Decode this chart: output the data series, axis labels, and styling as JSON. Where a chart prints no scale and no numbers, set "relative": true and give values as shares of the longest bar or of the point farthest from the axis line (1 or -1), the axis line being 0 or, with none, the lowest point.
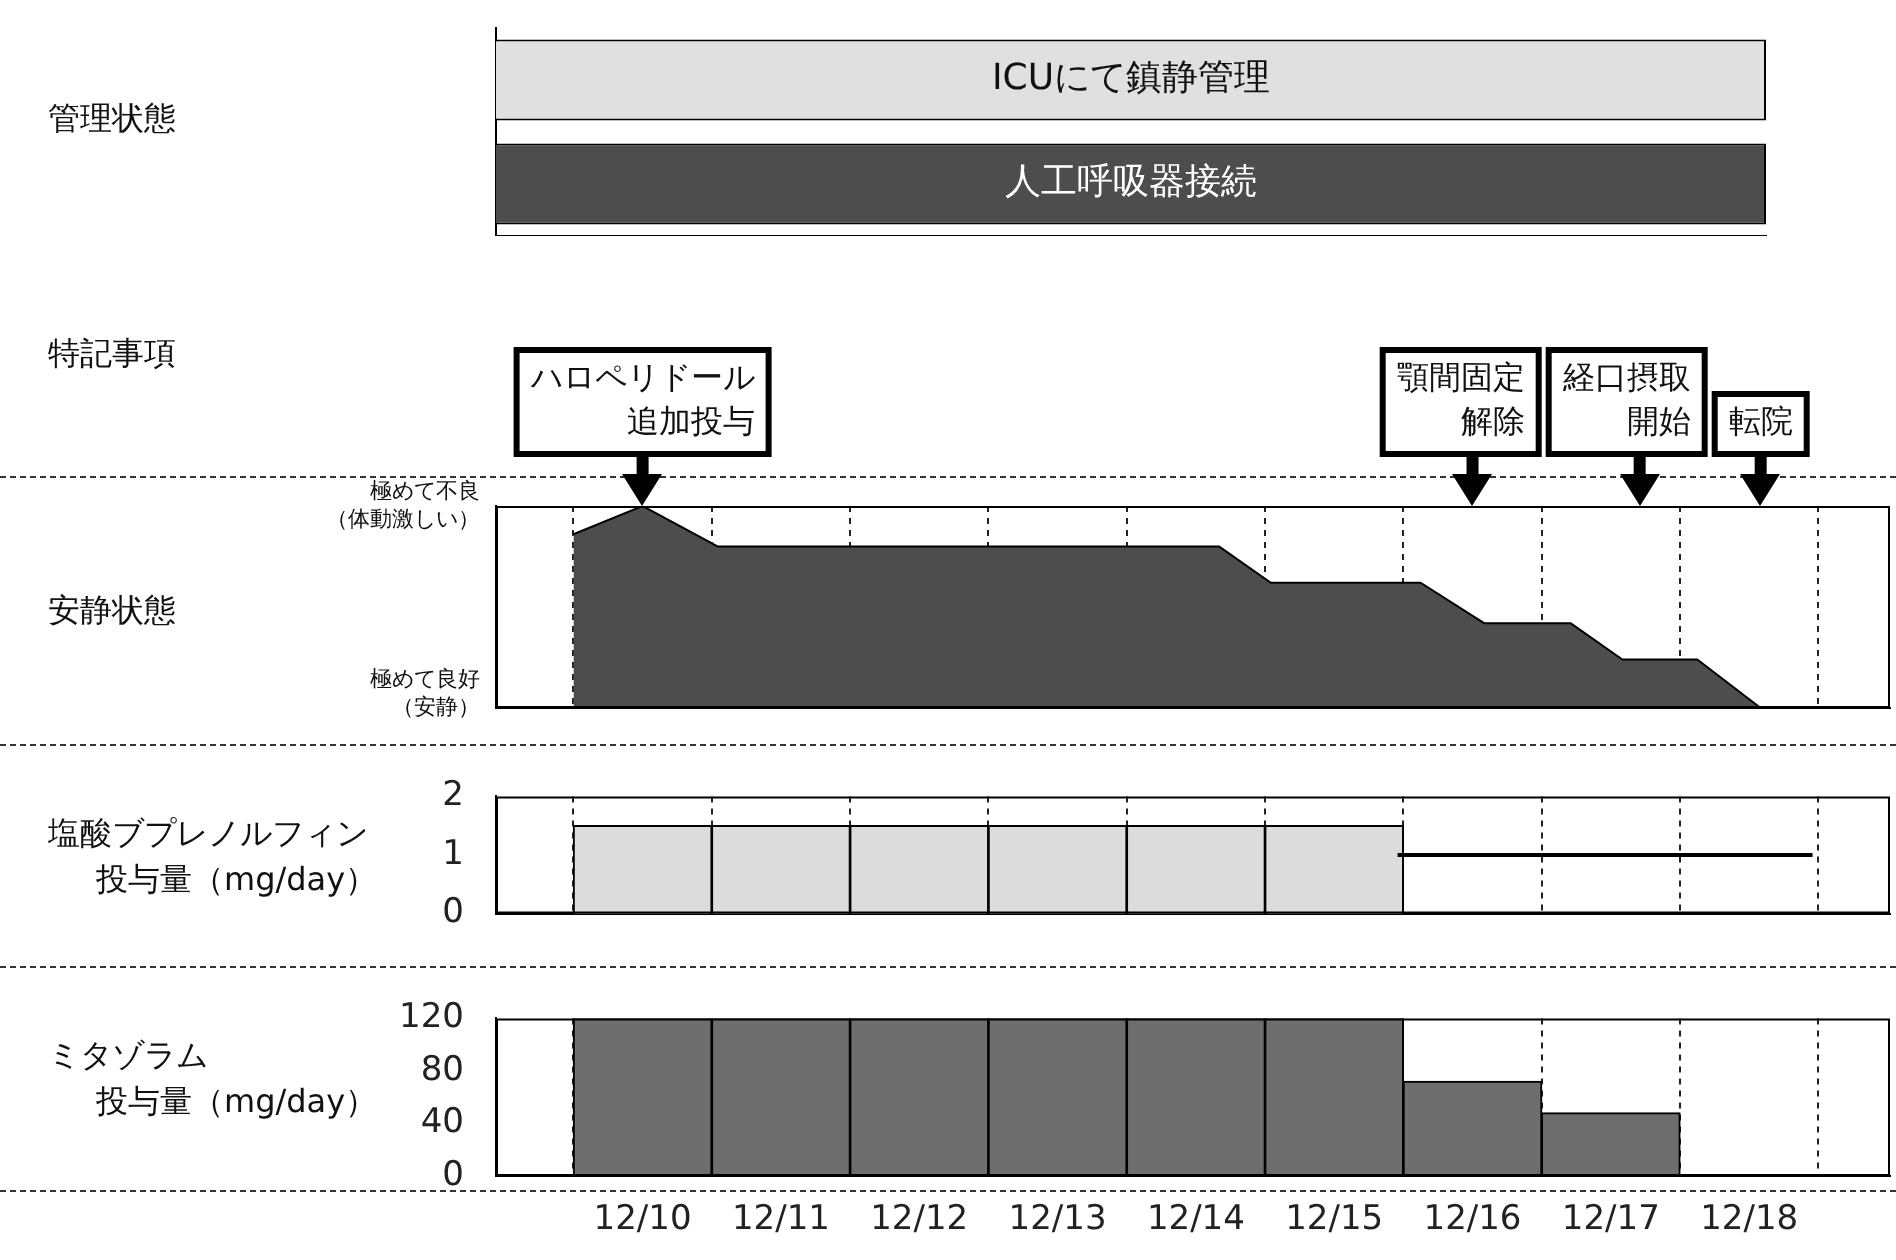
{
  "chart_data": [
    {
      "type": "bar",
      "orientation": "horizontal",
      "relative": true,
      "ylabel": "管理状態",
      "categories": [
        "ICUにて鎮静管理",
        "人工呼吸器接続"
      ],
      "values": [
        1,
        1
      ],
      "colors": [
        "#e0e0e0",
        "#4d4d4d"
      ],
      "tick_labels": false
    },
    {
      "type": "area",
      "ylabel": "安静状態",
      "relative": true,
      "x": [
        "--12-09T12:00",
        "--12-10",
        "--12-10T13:00",
        "--12-14T04:00",
        "--12-14T13:00",
        "--12-15T15:00",
        "--12-16T02:00",
        "--12-16T17:00",
        "--12-17T02:00",
        "--12-17T15:00",
        "--12-18T02:00",
        "--12-18T11:00"
      ],
      "values": [
        0.86,
        1,
        0.8,
        0.8,
        0.62,
        0.62,
        0.42,
        0.42,
        0.24,
        0.24,
        0,
        0
      ],
      "color": "#4d4d4d",
      "xlim": [
        "--12-09T12:00",
        "--12-18T11:00"
      ],
      "xticks": [
        {
          "value": "--12-10",
          "label": "12/10"
        },
        {
          "value": "--12-11",
          "label": "12/11"
        },
        {
          "value": "--12-12",
          "label": "12/12"
        },
        {
          "value": "--12-13",
          "label": "12/13"
        },
        {
          "value": "--12-14",
          "label": "12/14"
        },
        {
          "value": "--12-15",
          "label": "12/15"
        },
        {
          "value": "--12-16",
          "label": "12/16"
        },
        {
          "value": "--12-17",
          "label": "12/17"
        },
        {
          "value": "--12-18",
          "label": "12/18"
        }
      ],
      "grid": "x",
      "tick_labels": false,
      "ref_lines": [
        {
          "axis": "x",
          "value": "--12-10",
          "label": "ハロペリドール追加投与"
        },
        {
          "axis": "x",
          "value": "--12-16",
          "label": "顎間固定解除"
        },
        {
          "axis": "x",
          "value": "--12-17T05:00",
          "label": "経口摂取開始"
        },
        {
          "axis": "x",
          "value": "--12-18T02:00",
          "label": "転院"
        }
      ],
      "annotations": [
        "特記事項",
        "極めて不良（体動激しい）",
        "極めて良好（安静）"
      ]
    },
    {
      "type": "bar",
      "ylabel": "塩酸ブプレノルフィン投与量（mg/day）",
      "series": [
        {
          "type": "bar",
          "color": "#dcdcdc",
          "x": [
            "--12-10",
            "--12-11",
            "--12-12",
            "--12-13",
            "--12-14",
            "--12-15"
          ],
          "values": [
            1.5,
            1.5,
            1.5,
            1.5,
            1.5,
            1.5
          ]
        },
        {
          "type": "line",
          "color": "#000000",
          "x": [
            "--12-15T11:00",
            "--12-18T11:00"
          ],
          "values": [
            1,
            1
          ]
        }
      ],
      "ylim": [
        0,
        2
      ],
      "yticks": [
        0,
        1,
        2
      ],
      "xlim": [
        "--12-09T12:00",
        "--12-18T11:00"
      ],
      "xticks": [
        {
          "value": "--12-10",
          "label": "12/10"
        },
        {
          "value": "--12-11",
          "label": "12/11"
        },
        {
          "value": "--12-12",
          "label": "12/12"
        },
        {
          "value": "--12-13",
          "label": "12/13"
        },
        {
          "value": "--12-14",
          "label": "12/14"
        },
        {
          "value": "--12-15",
          "label": "12/15"
        },
        {
          "value": "--12-16",
          "label": "12/16"
        },
        {
          "value": "--12-17",
          "label": "12/17"
        },
        {
          "value": "--12-18",
          "label": "12/18"
        }
      ],
      "grid": "x",
      "tick_labels": "y"
    },
    {
      "type": "bar",
      "ylabel": "ミタゾラム投与量（mg/day）",
      "x": [
        "--12-10",
        "--12-11",
        "--12-12",
        "--12-13",
        "--12-14",
        "--12-15",
        "--12-16",
        "--12-17"
      ],
      "values": [
        120,
        120,
        120,
        120,
        120,
        120,
        72,
        48
      ],
      "color": "#6e6e6e",
      "ylim": [
        0,
        120
      ],
      "yticks": [
        0,
        40,
        80,
        120
      ],
      "xlim": [
        "--12-09T12:00",
        "--12-18T11:00"
      ],
      "xticks": [
        {
          "value": "--12-10",
          "label": "12/10"
        },
        {
          "value": "--12-11",
          "label": "12/11"
        },
        {
          "value": "--12-12",
          "label": "12/12"
        },
        {
          "value": "--12-13",
          "label": "12/13"
        },
        {
          "value": "--12-14",
          "label": "12/14"
        },
        {
          "value": "--12-15",
          "label": "12/15"
        },
        {
          "value": "--12-16",
          "label": "12/16"
        },
        {
          "value": "--12-17",
          "label": "12/17"
        },
        {
          "value": "--12-18",
          "label": "12/18"
        }
      ],
      "grid": "x"
    }
  ]
}
